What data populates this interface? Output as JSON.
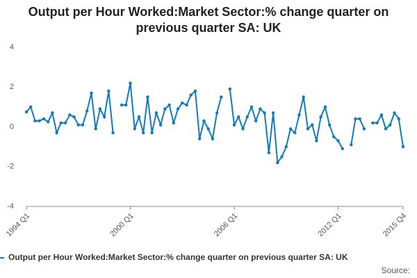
{
  "chart_data": {
    "type": "line",
    "title": "Output per Hour Worked:Market Sector:% change quarter on previous quarter SA: UK",
    "source": "Source:",
    "categories": [
      "1994 Q1",
      null,
      null,
      null,
      null,
      null,
      null,
      null,
      null,
      null,
      null,
      null,
      null,
      null,
      null,
      null,
      null,
      null,
      null,
      null,
      null,
      null,
      null,
      null,
      "2000 Q1",
      null,
      null,
      null,
      null,
      null,
      null,
      null,
      null,
      null,
      null,
      null,
      null,
      null,
      null,
      null,
      null,
      null,
      null,
      null,
      null,
      null,
      null,
      null,
      "2006 Q1",
      null,
      null,
      null,
      null,
      null,
      null,
      null,
      null,
      null,
      null,
      null,
      null,
      null,
      null,
      null,
      null,
      null,
      null,
      null,
      null,
      null,
      null,
      null,
      "2012 Q1",
      null,
      null,
      null,
      null,
      null,
      null,
      null,
      null,
      null,
      null,
      null,
      null,
      null,
      null,
      "2015 Q4"
    ],
    "series": [
      {
        "name": "Output per Hour Worked:Market Sector:% change quarter on previous quarter SA: UK",
        "color": "#0f7bbd",
        "values": [
          0.75,
          1.0,
          0.3,
          0.3,
          0.4,
          0.25,
          0.7,
          -0.3,
          0.2,
          0.2,
          0.6,
          0.5,
          0.1,
          0.1,
          0.8,
          1.7,
          -0.1,
          0.9,
          0.5,
          1.8,
          -0.3,
          null,
          1.1,
          1.1,
          2.2,
          -0.1,
          0.5,
          -0.3,
          1.5,
          -0.3,
          0.7,
          0.1,
          0.9,
          1.1,
          0.2,
          0.9,
          1.2,
          1.1,
          1.6,
          1.8,
          -0.6,
          0.3,
          -0.1,
          -0.6,
          0.7,
          1.5,
          null,
          1.9,
          0.1,
          0.5,
          -0.1,
          0.5,
          1.0,
          0.3,
          0.9,
          0.7,
          -1.3,
          0.7,
          -1.8,
          -1.5,
          -1.0,
          -0.1,
          -0.3,
          0.6,
          1.5,
          -0.1,
          0.1,
          -0.7,
          0.5,
          1.0,
          0.1,
          -0.5,
          -0.7,
          -1.1,
          null,
          -0.9,
          0.4,
          0.4,
          -0.1,
          null,
          0.2,
          0.2,
          0.6,
          -0.1,
          0.1,
          0.7,
          0.4,
          -1.0
        ]
      }
    ],
    "ylim": [
      -4,
      4
    ],
    "yticks": [
      -4,
      -2,
      0,
      2,
      4
    ],
    "grid": false
  }
}
